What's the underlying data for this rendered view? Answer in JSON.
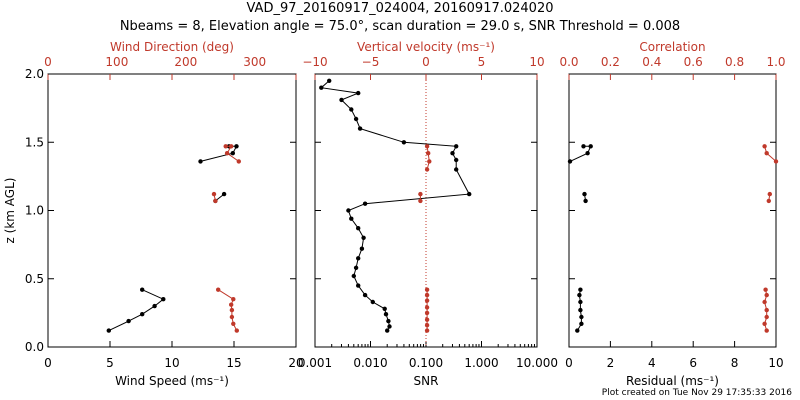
{
  "title_line1": "VAD_97_20160917_024004, 20160917.024020",
  "title_line2": "Nbeams = 8, Elevation angle = 75.0°, scan duration = 29.0 s, SNR Threshold = 0.008",
  "footer": "Plot created on Tue Nov 29 17:35:33 2016",
  "colors": {
    "black": "#000000",
    "red": "#c0392b"
  },
  "chart_data": [
    {
      "type": "line",
      "ylabel": "z (km AGL)",
      "ylim": [
        0,
        2
      ],
      "yticks": [
        "0.0",
        "0.5",
        "1.0",
        "1.5",
        "2.0"
      ],
      "xlabel_bottom": "Wind Speed (ms⁻¹)",
      "xlim_bottom": [
        0,
        20
      ],
      "xticks_bottom": [
        "0",
        "5",
        "10",
        "15",
        "20"
      ],
      "xlabel_top": "Wind Direction (deg)",
      "xlim_top": [
        0,
        360
      ],
      "xticks_top": [
        "0",
        "100",
        "200",
        "300"
      ],
      "series": [
        {
          "axis": "bottom",
          "color": "black",
          "segments": [
            [
              [
                4.9,
                0.12
              ],
              [
                6.5,
                0.19
              ],
              [
                7.6,
                0.24
              ],
              [
                8.6,
                0.3
              ],
              [
                9.3,
                0.35
              ],
              [
                7.6,
                0.42
              ]
            ],
            [
              [
                13.5,
                1.07
              ],
              [
                14.2,
                1.12
              ]
            ],
            [
              [
                12.3,
                1.36
              ],
              [
                14.9,
                1.42
              ],
              [
                15.2,
                1.47
              ],
              [
                14.6,
                1.47
              ]
            ]
          ]
        },
        {
          "axis": "top",
          "color": "red",
          "segments": [
            [
              [
                274,
                0.12
              ],
              [
                269,
                0.17
              ],
              [
                267,
                0.22
              ],
              [
                267,
                0.27
              ],
              [
                266,
                0.31
              ],
              [
                269,
                0.35
              ],
              [
                247,
                0.42
              ]
            ],
            [
              [
                243,
                1.07
              ],
              [
                241,
                1.12
              ]
            ],
            [
              [
                277,
                1.36
              ],
              [
                260,
                1.42
              ],
              [
                266,
                1.47
              ],
              [
                258,
                1.47
              ]
            ]
          ]
        }
      ]
    },
    {
      "type": "line",
      "xlabel_bottom": "SNR",
      "xscale_bottom": "log",
      "xlim_bottom": [
        0.001,
        10
      ],
      "xticks_bottom": [
        "0.001",
        "0.010",
        "0.100",
        "1.000",
        "10.000"
      ],
      "xlabel_top": "Vertical velocity (ms⁻¹)",
      "xlim_top": [
        -10,
        10
      ],
      "xticks_top": [
        "−10",
        "−5",
        "0",
        "5",
        "10"
      ],
      "ylim": [
        0,
        2
      ],
      "series": [
        {
          "axis": "bottom",
          "color": "black",
          "segments": [
            [
              [
                0.02,
                0.12
              ],
              [
                0.022,
                0.15
              ],
              [
                0.021,
                0.19
              ],
              [
                0.019,
                0.24
              ],
              [
                0.018,
                0.28
              ],
              [
                0.011,
                0.33
              ],
              [
                0.008,
                0.38
              ],
              [
                0.006,
                0.45
              ],
              [
                0.005,
                0.52
              ],
              [
                0.0055,
                0.58
              ],
              [
                0.006,
                0.65
              ],
              [
                0.007,
                0.72
              ],
              [
                0.0075,
                0.8
              ],
              [
                0.006,
                0.87
              ],
              [
                0.0045,
                0.94
              ],
              [
                0.004,
                1.0
              ],
              [
                0.008,
                1.05
              ],
              [
                0.6,
                1.12
              ],
              [
                0.35,
                1.3
              ],
              [
                0.35,
                1.37
              ],
              [
                0.3,
                1.42
              ],
              [
                0.35,
                1.47
              ],
              [
                0.04,
                1.5
              ],
              [
                0.0065,
                1.6
              ],
              [
                0.0055,
                1.67
              ],
              [
                0.0045,
                1.74
              ],
              [
                0.003,
                1.81
              ],
              [
                0.006,
                1.86
              ],
              [
                0.0013,
                1.9
              ],
              [
                0.0018,
                1.95
              ]
            ]
          ]
        },
        {
          "axis": "top",
          "color": "red",
          "segments": [
            [
              [
                0.1,
                0.12
              ],
              [
                0.1,
                0.16
              ],
              [
                0.1,
                0.2
              ],
              [
                0.1,
                0.25
              ],
              [
                0.1,
                0.29
              ],
              [
                0.1,
                0.34
              ],
              [
                0.1,
                0.38
              ],
              [
                0.1,
                0.42
              ]
            ],
            [
              [
                -0.5,
                1.07
              ],
              [
                -0.5,
                1.12
              ]
            ],
            [
              [
                0.1,
                1.3
              ],
              [
                0.3,
                1.36
              ],
              [
                0.2,
                1.42
              ],
              [
                0.1,
                1.47
              ]
            ]
          ]
        }
      ]
    },
    {
      "type": "line",
      "xlabel_bottom": "Residual (ms⁻¹)",
      "xlim_bottom": [
        0,
        10
      ],
      "xticks_bottom": [
        "0",
        "2",
        "4",
        "6",
        "8",
        "10"
      ],
      "xlabel_top": "Correlation",
      "xlim_top": [
        0,
        1
      ],
      "xticks_top": [
        "0.0",
        "0.2",
        "0.4",
        "0.6",
        "0.8",
        "1.0"
      ],
      "ylim": [
        0,
        2
      ],
      "series": [
        {
          "axis": "bottom",
          "color": "black",
          "segments": [
            [
              [
                0.4,
                0.12
              ],
              [
                0.6,
                0.17
              ],
              [
                0.6,
                0.22
              ],
              [
                0.55,
                0.27
              ],
              [
                0.55,
                0.33
              ],
              [
                0.5,
                0.38
              ],
              [
                0.55,
                0.42
              ]
            ],
            [
              [
                0.8,
                1.07
              ],
              [
                0.75,
                1.12
              ]
            ],
            [
              [
                0.05,
                1.36
              ],
              [
                0.9,
                1.42
              ],
              [
                1.05,
                1.47
              ],
              [
                0.7,
                1.47
              ]
            ]
          ]
        },
        {
          "axis": "top",
          "color": "red",
          "segments": [
            [
              [
                0.955,
                0.12
              ],
              [
                0.945,
                0.17
              ],
              [
                0.955,
                0.22
              ],
              [
                0.955,
                0.27
              ],
              [
                0.945,
                0.33
              ],
              [
                0.955,
                0.38
              ],
              [
                0.95,
                0.42
              ]
            ],
            [
              [
                0.965,
                1.07
              ],
              [
                0.97,
                1.12
              ]
            ],
            [
              [
                1.0,
                1.36
              ],
              [
                0.955,
                1.42
              ],
              [
                0.945,
                1.47
              ]
            ]
          ]
        }
      ]
    }
  ]
}
